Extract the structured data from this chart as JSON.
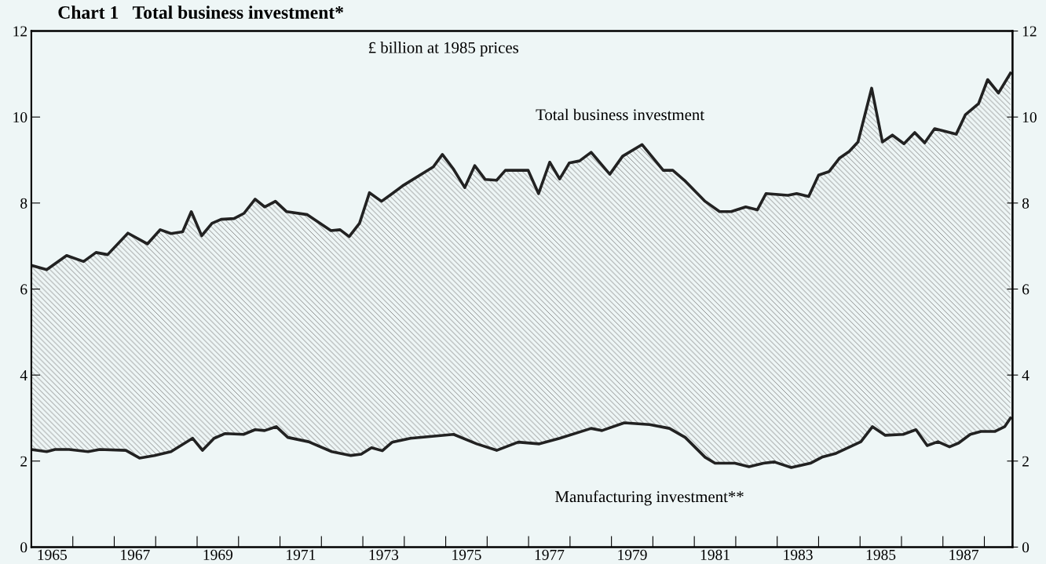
{
  "chart_data": {
    "type": "area",
    "title": "Chart 1   Total business investment*",
    "subtitle": "£ billion at 1985 prices",
    "xlim": [
      1965,
      1988.68
    ],
    "xticks": [
      {
        "value": 1965.5,
        "label": "1965"
      },
      {
        "value": 1966,
        "label": null
      },
      {
        "value": 1967,
        "label": null
      },
      {
        "value": 1967.5,
        "label": "1967"
      },
      {
        "value": 1968,
        "label": null
      },
      {
        "value": 1969,
        "label": null
      },
      {
        "value": 1969.5,
        "label": "1969"
      },
      {
        "value": 1970,
        "label": null
      },
      {
        "value": 1971,
        "label": null
      },
      {
        "value": 1971.5,
        "label": "1971"
      },
      {
        "value": 1972,
        "label": null
      },
      {
        "value": 1973,
        "label": null
      },
      {
        "value": 1973.5,
        "label": "1973"
      },
      {
        "value": 1974,
        "label": null
      },
      {
        "value": 1975,
        "label": null
      },
      {
        "value": 1975.5,
        "label": "1975"
      },
      {
        "value": 1976,
        "label": null
      },
      {
        "value": 1977,
        "label": null
      },
      {
        "value": 1977.5,
        "label": "1977"
      },
      {
        "value": 1978,
        "label": null
      },
      {
        "value": 1979,
        "label": null
      },
      {
        "value": 1979.5,
        "label": "1979"
      },
      {
        "value": 1980,
        "label": null
      },
      {
        "value": 1981,
        "label": null
      },
      {
        "value": 1981.5,
        "label": "1981"
      },
      {
        "value": 1982,
        "label": null
      },
      {
        "value": 1983,
        "label": null
      },
      {
        "value": 1983.5,
        "label": "1983"
      },
      {
        "value": 1984,
        "label": null
      },
      {
        "value": 1985,
        "label": null
      },
      {
        "value": 1985.5,
        "label": "1985"
      },
      {
        "value": 1986,
        "label": null
      },
      {
        "value": 1987,
        "label": null
      },
      {
        "value": 1987.5,
        "label": "1987"
      },
      {
        "value": 1988,
        "label": null
      }
    ],
    "ylim": [
      0,
      12
    ],
    "yticks": [
      0,
      2,
      4,
      6,
      8,
      10,
      12
    ],
    "y2lim": [
      0,
      12
    ],
    "y2ticks": [
      0,
      2,
      4,
      6,
      8,
      10,
      12
    ],
    "grid": false,
    "legend": false,
    "series": [
      {
        "name": "Total business investment",
        "color": "#222222",
        "x": [
          1965.0,
          1965.37,
          1965.85,
          1966.26,
          1966.56,
          1966.84,
          1967.33,
          1967.8,
          1968.11,
          1968.37,
          1968.65,
          1968.86,
          1969.11,
          1969.36,
          1969.58,
          1969.89,
          1970.13,
          1970.4,
          1970.63,
          1970.89,
          1971.16,
          1971.66,
          1972.23,
          1972.45,
          1972.67,
          1972.92,
          1973.16,
          1973.45,
          1973.71,
          1973.96,
          1974.7,
          1974.92,
          1975.18,
          1975.46,
          1975.7,
          1975.95,
          1976.23,
          1976.44,
          1976.99,
          1977.24,
          1977.51,
          1977.75,
          1977.98,
          1978.23,
          1978.51,
          1978.96,
          1979.27,
          1979.74,
          1980.25,
          1980.48,
          1980.76,
          1981.26,
          1981.61,
          1981.89,
          1982.24,
          1982.52,
          1982.73,
          1983.26,
          1983.47,
          1983.76,
          1984.0,
          1984.25,
          1984.5,
          1984.74,
          1984.95,
          1985.28,
          1985.54,
          1985.78,
          1986.06,
          1986.32,
          1986.56,
          1986.8,
          1987.32,
          1987.54,
          1987.86,
          1988.08,
          1988.34,
          1988.63
        ],
        "values": [
          6.55,
          6.45,
          6.78,
          6.64,
          6.85,
          6.8,
          7.3,
          7.05,
          7.38,
          7.29,
          7.33,
          7.8,
          7.24,
          7.53,
          7.62,
          7.64,
          7.76,
          8.09,
          7.91,
          8.04,
          7.8,
          7.73,
          7.36,
          7.38,
          7.22,
          7.53,
          8.24,
          8.04,
          8.22,
          8.4,
          8.84,
          9.13,
          8.8,
          8.36,
          8.87,
          8.55,
          8.53,
          8.76,
          8.76,
          8.22,
          8.95,
          8.56,
          8.93,
          8.98,
          9.18,
          8.67,
          9.09,
          9.36,
          8.76,
          8.76,
          8.53,
          8.04,
          7.8,
          7.8,
          7.91,
          7.84,
          8.22,
          8.18,
          8.22,
          8.15,
          8.65,
          8.73,
          9.04,
          9.2,
          9.42,
          10.67,
          9.42,
          9.58,
          9.38,
          9.64,
          9.4,
          9.73,
          9.6,
          10.05,
          10.31,
          10.87,
          10.56,
          11.02
        ]
      },
      {
        "name": "Manufacturing investment**",
        "type": "line",
        "color": "#222222",
        "x": [
          1965.0,
          1965.37,
          1965.57,
          1965.91,
          1966.37,
          1966.65,
          1967.28,
          1967.61,
          1967.97,
          1968.37,
          1968.89,
          1969.13,
          1969.41,
          1969.68,
          1970.12,
          1970.4,
          1970.63,
          1970.91,
          1971.19,
          1971.69,
          1972.25,
          1972.71,
          1972.96,
          1973.21,
          1973.47,
          1973.71,
          1974.15,
          1975.19,
          1975.75,
          1976.23,
          1976.75,
          1977.26,
          1977.75,
          1978.51,
          1978.77,
          1979.31,
          1979.92,
          1980.4,
          1980.78,
          1981.26,
          1981.5,
          1981.98,
          1982.32,
          1982.67,
          1982.93,
          1983.34,
          1983.8,
          1984.08,
          1984.42,
          1985.02,
          1985.3,
          1985.61,
          1986.04,
          1986.35,
          1986.62,
          1986.88,
          1987.16,
          1987.38,
          1987.66,
          1987.92,
          1988.26,
          1988.49,
          1988.63
        ],
        "values": [
          2.27,
          2.22,
          2.27,
          2.27,
          2.22,
          2.27,
          2.25,
          2.07,
          2.13,
          2.22,
          2.53,
          2.25,
          2.53,
          2.64,
          2.62,
          2.73,
          2.71,
          2.8,
          2.55,
          2.45,
          2.22,
          2.13,
          2.16,
          2.31,
          2.24,
          2.44,
          2.53,
          2.62,
          2.4,
          2.25,
          2.44,
          2.4,
          2.53,
          2.76,
          2.71,
          2.89,
          2.85,
          2.76,
          2.55,
          2.09,
          1.95,
          1.95,
          1.87,
          1.95,
          1.98,
          1.85,
          1.95,
          2.09,
          2.18,
          2.45,
          2.8,
          2.6,
          2.62,
          2.73,
          2.36,
          2.45,
          2.33,
          2.42,
          2.62,
          2.69,
          2.69,
          2.8,
          3.0
        ]
      }
    ]
  }
}
